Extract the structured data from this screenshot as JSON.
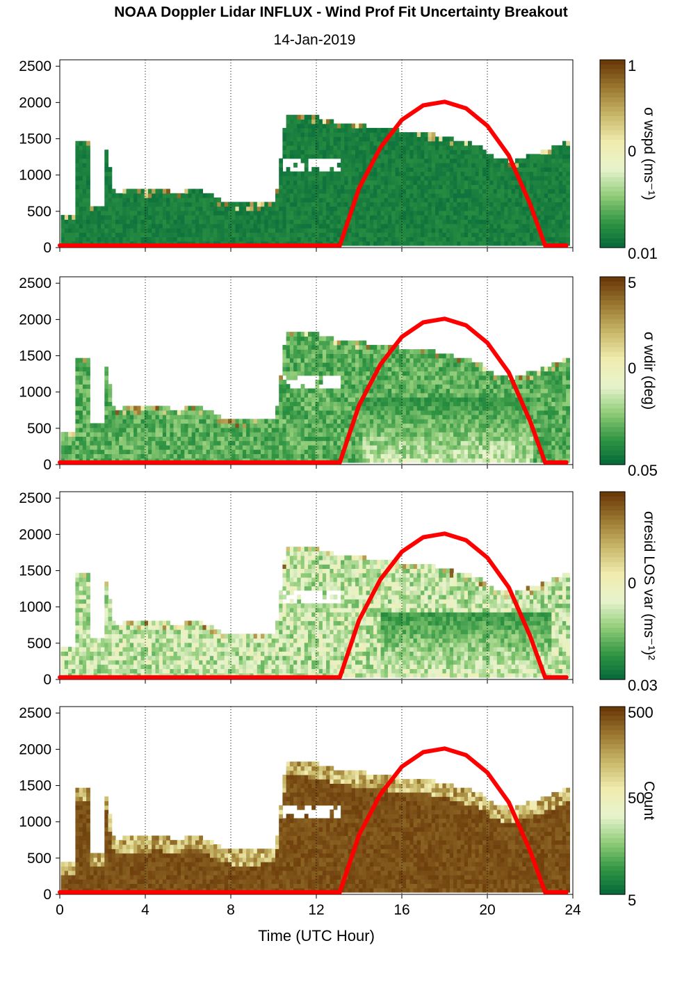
{
  "title": "NOAA Doppler Lidar INFLUX - Wind Prof Fit Uncertainty Breakout",
  "subtitle": "14-Jan-2019",
  "chart_data": {
    "type": "heatmap",
    "xlabel": "Time (UTC Hour)",
    "xlim": [
      0,
      24
    ],
    "x_ticks": [
      "0",
      "4",
      "8",
      "12",
      "16",
      "20",
      "24"
    ],
    "ylim": [
      0,
      2550
    ],
    "y_ticks": [
      "0",
      "500",
      "1000",
      "1500",
      "2000",
      "2500"
    ],
    "grid": "dotted vertical at 4-hour intervals",
    "colormap": [
      "#00653a",
      "#2f9442",
      "#8fcc78",
      "#e6f3cc",
      "#f1ecb0",
      "#c9b96a",
      "#9c7a32",
      "#6b3a09"
    ],
    "overlay": {
      "color": "#ff0000",
      "description": "red sun-elevation curve",
      "x": [
        0,
        13.1,
        14,
        15,
        16,
        17,
        18,
        19,
        20,
        21,
        22,
        22.7,
        23.7
      ],
      "y": [
        30,
        30,
        820,
        1380,
        1760,
        1960,
        2010,
        1920,
        1680,
        1270,
        600,
        30,
        30
      ]
    },
    "data_coverage": {
      "hours": [
        0,
        0.7,
        0.7,
        1.3,
        1.3,
        2.0,
        2.0,
        2.5,
        3.0,
        3.5,
        4.0,
        4.5,
        5.0,
        5.5,
        6.0,
        6.5,
        7.0,
        7.5,
        8.0,
        8.5,
        9.0,
        9.6,
        10.0,
        10.5,
        11.0,
        12.0,
        13.0,
        14.0,
        15.0,
        16.0,
        17.0,
        18.0,
        19.0,
        19.5,
        20.0,
        21.0,
        22.0,
        23.0,
        23.7
      ],
      "top_m": [
        420,
        420,
        1450,
        1450,
        550,
        550,
        1450,
        700,
        760,
        760,
        760,
        780,
        760,
        720,
        800,
        760,
        700,
        620,
        580,
        580,
        580,
        600,
        600,
        1800,
        1800,
        1780,
        1680,
        1660,
        1620,
        1580,
        1560,
        1500,
        1420,
        1400,
        1250,
        1150,
        1250,
        1350,
        1450
      ]
    },
    "panels": [
      {
        "colorbar_label": "σ wspd (ms⁻¹)",
        "colorbar_ticks": [
          "1",
          "0",
          "0.01"
        ],
        "low_level": 0.04,
        "high_level": 0.08,
        "high_zone": [
          0,
          0
        ],
        "high_value": 0.1
      },
      {
        "colorbar_label": "σ wdir (deg)",
        "colorbar_ticks": [
          "5",
          "0",
          "0.05"
        ],
        "low_level": 0.12,
        "high_level": 0.18,
        "high_zone": [
          14,
          22
        ],
        "high_value": 0.42
      },
      {
        "colorbar_label": "σresid LOS var (ms⁻¹)²",
        "colorbar_ticks": [
          "",
          "0",
          "0.03"
        ],
        "low_level": 0.22,
        "high_level": 0.3,
        "high_zone": [
          15,
          23
        ],
        "high_value": 0.46
      },
      {
        "colorbar_label": "Count",
        "colorbar_ticks": [
          "500",
          "50",
          "5"
        ],
        "low_level": 0.95,
        "high_level": 0.78,
        "high_zone": [
          0,
          0
        ],
        "high_value": 0.95
      }
    ]
  }
}
